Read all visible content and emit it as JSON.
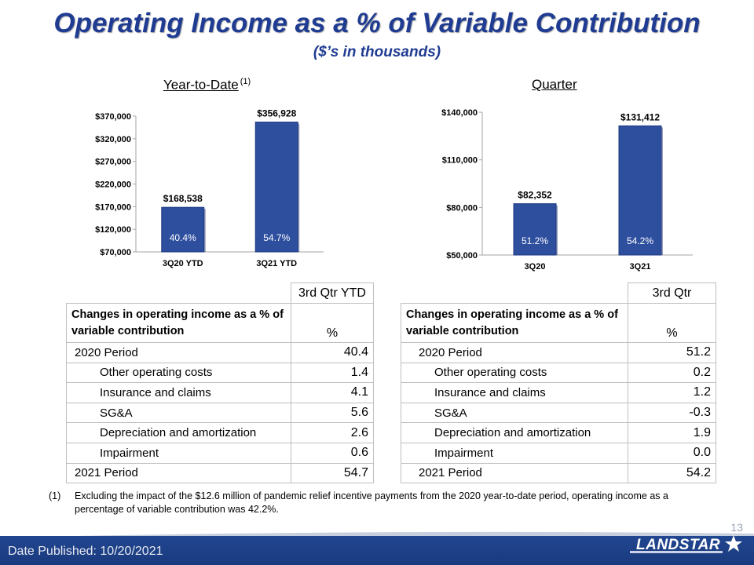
{
  "title": "Operating Income as a % of Variable Contribution",
  "subtitle": "($’s in thousands)",
  "chart_data": [
    {
      "type": "bar",
      "heading": "Year-to-Date",
      "heading_footnote": "(1)",
      "categories": [
        "3Q20 YTD",
        "3Q21 YTD"
      ],
      "values": [
        168538,
        356928
      ],
      "value_labels": [
        "$168,538",
        "$356,928"
      ],
      "bar_inner_labels": [
        "40.4%",
        "54.7%"
      ],
      "ylim": [
        70000,
        370000
      ],
      "yticks": [
        70000,
        120000,
        170000,
        220000,
        270000,
        320000,
        370000
      ],
      "ytick_labels": [
        "$70,000",
        "$120,000",
        "$170,000",
        "$220,000",
        "$270,000",
        "$320,000",
        "$370,000"
      ],
      "bar_color": "#2e4e9e",
      "grid": false
    },
    {
      "type": "bar",
      "heading": "Quarter",
      "categories": [
        "3Q20",
        "3Q21"
      ],
      "values": [
        82352,
        131412
      ],
      "value_labels": [
        "$82,352",
        "$131,412"
      ],
      "bar_inner_labels": [
        "51.2%",
        "54.2%"
      ],
      "ylim": [
        50000,
        140000
      ],
      "yticks": [
        50000,
        80000,
        110000,
        140000
      ],
      "ytick_labels": [
        "$50,000",
        "$80,000",
        "$110,000",
        "$140,000"
      ],
      "bar_color": "#2e4e9e",
      "grid": false
    }
  ],
  "tables": [
    {
      "column_header": "3rd Qtr YTD",
      "description": "Changes in operating income as a % of variable contribution",
      "unit": "%",
      "rows": [
        {
          "label": "2020 Period",
          "value": "40.4",
          "level": 1
        },
        {
          "label": "Other operating costs",
          "value": "1.4",
          "level": 2
        },
        {
          "label": "Insurance and claims",
          "value": "4.1",
          "level": 2
        },
        {
          "label": "SG&A",
          "value": "5.6",
          "level": 2
        },
        {
          "label": "Depreciation and amortization",
          "value": "2.6",
          "level": 2
        },
        {
          "label": "Impairment",
          "value": "0.6",
          "level": 2
        },
        {
          "label": "2021 Period",
          "value": "54.7",
          "level": 1
        }
      ]
    },
    {
      "column_header": "3rd Qtr",
      "description": "Changes in operating income as a % of variable contribution",
      "unit": "%",
      "rows": [
        {
          "label": "2020 Period",
          "value": "51.2",
          "level": 1
        },
        {
          "label": "Other operating costs",
          "value": "0.2",
          "level": 2
        },
        {
          "label": "Insurance and claims",
          "value": "1.2",
          "level": 2
        },
        {
          "label": "SG&A",
          "value": "-0.3",
          "level": 2
        },
        {
          "label": "Depreciation and amortization",
          "value": "1.9",
          "level": 2
        },
        {
          "label": "Impairment",
          "value": "0.0",
          "level": 2
        },
        {
          "label": "2021 Period",
          "value": "54.2",
          "level": 1
        }
      ]
    }
  ],
  "footnote": {
    "mark": "(1)",
    "text": "Excluding the impact of the $12.6 million of pandemic relief incentive payments from the 2020 year-to-date period, operating income as a percentage of variable contribution was 42.2%."
  },
  "footer": {
    "date_published": "Date Published:  10/20/2021",
    "page_number": "13",
    "logo_text": "LANDSTAR"
  },
  "colors": {
    "title": "#1f3c92",
    "bar": "#2e4e9e",
    "footer": "#1d3f86"
  }
}
